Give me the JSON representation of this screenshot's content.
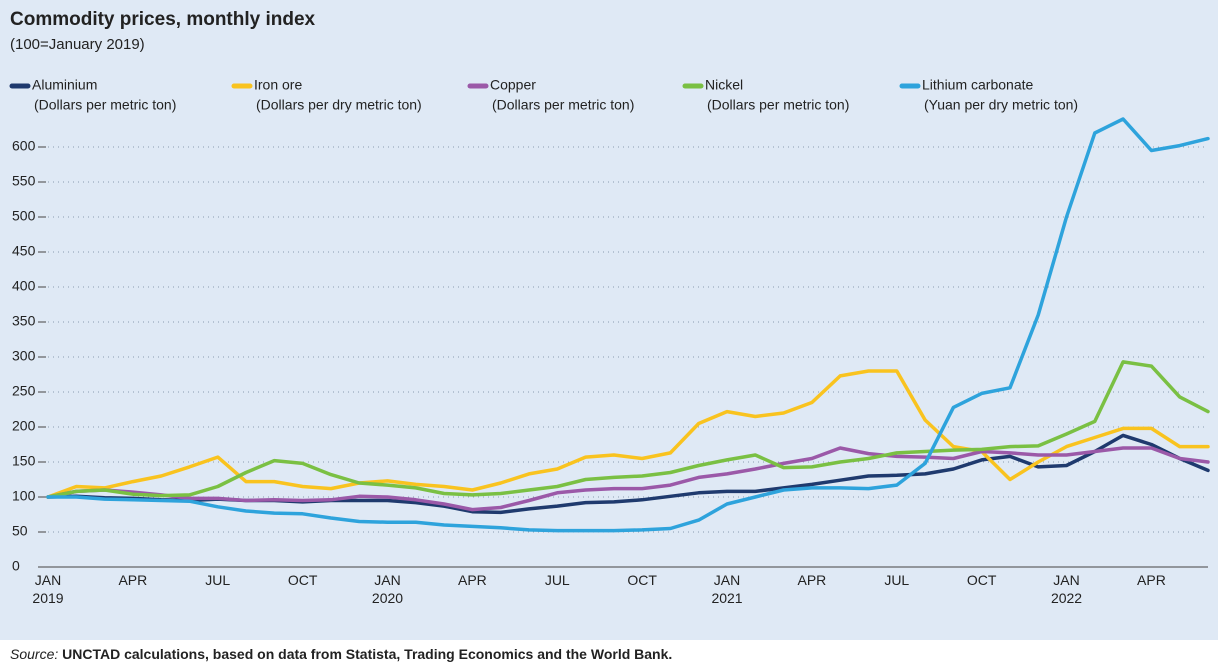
{
  "chart_data": {
    "type": "line",
    "title": "Commodity prices, monthly index",
    "subtitle": "(100=January 2019)",
    "source_label": "Source:",
    "source": "UNCTAD calculations, based on data from Statista, Trading Economics and the World Bank.",
    "categories": [
      "JAN\n2019",
      null,
      null,
      "APR",
      null,
      null,
      "JUL",
      null,
      null,
      "OCT",
      null,
      null,
      "JAN\n2020",
      null,
      null,
      "APR",
      null,
      null,
      "JUL",
      null,
      null,
      "OCT",
      null,
      null,
      "JAN\n2021",
      null,
      null,
      "APR",
      null,
      null,
      "JUL",
      null,
      null,
      "OCT",
      null,
      null,
      "JAN\n2022",
      null,
      null,
      "APR",
      null,
      null
    ],
    "series": [
      {
        "name": "Aluminium",
        "unit": "(Dollars per metric ton)",
        "color": "#1f3a6e",
        "values": [
          100,
          101,
          99,
          98,
          96,
          95,
          97,
          95,
          95,
          93,
          95,
          95,
          95,
          92,
          87,
          79,
          78,
          83,
          87,
          92,
          93,
          96,
          101,
          106,
          108,
          108,
          113,
          118,
          124,
          130,
          131,
          133,
          140,
          153,
          158,
          143,
          145,
          165,
          188,
          175,
          155,
          138
        ]
      },
      {
        "name": "Iron ore",
        "unit": "(Dollars per dry metric ton)",
        "color": "#f9c31f",
        "values": [
          100,
          115,
          113,
          122,
          130,
          143,
          157,
          122,
          122,
          115,
          112,
          120,
          123,
          118,
          115,
          110,
          120,
          133,
          140,
          157,
          160,
          155,
          163,
          205,
          222,
          215,
          220,
          235,
          273,
          280,
          280,
          210,
          172,
          165,
          125,
          150,
          172,
          185,
          198,
          198,
          172,
          172
        ]
      },
      {
        "name": "Copper",
        "unit": "(Dollars per metric ton)",
        "color": "#9b59a8",
        "values": [
          100,
          108,
          110,
          107,
          103,
          98,
          98,
          95,
          96,
          95,
          96,
          101,
          100,
          96,
          90,
          82,
          85,
          95,
          106,
          110,
          112,
          112,
          117,
          128,
          133,
          140,
          148,
          155,
          170,
          162,
          158,
          157,
          155,
          165,
          163,
          160,
          160,
          165,
          170,
          170,
          155,
          150
        ]
      },
      {
        "name": "Nickel",
        "unit": "(Dollars per metric ton)",
        "color": "#7ac043",
        "values": [
          100,
          108,
          110,
          104,
          102,
          103,
          115,
          135,
          152,
          148,
          132,
          120,
          117,
          113,
          105,
          103,
          105,
          110,
          115,
          125,
          128,
          130,
          135,
          145,
          153,
          160,
          142,
          143,
          150,
          155,
          163,
          165,
          167,
          168,
          172,
          173,
          190,
          208,
          293,
          287,
          243,
          222
        ]
      },
      {
        "name": "Lithium carbonate",
        "unit": "(Yuan per dry metric ton)",
        "color": "#2ea3dc",
        "values": [
          100,
          100,
          97,
          96,
          95,
          94,
          86,
          80,
          77,
          76,
          70,
          65,
          64,
          64,
          60,
          58,
          56,
          53,
          52,
          52,
          52,
          53,
          55,
          67,
          90,
          100,
          110,
          113,
          113,
          112,
          117,
          148,
          228,
          248,
          256,
          360,
          500,
          620,
          640,
          595,
          602,
          612
        ]
      }
    ],
    "ylim": [
      0,
      630
    ],
    "yticks": [
      0,
      50,
      100,
      150,
      200,
      250,
      300,
      350,
      400,
      450,
      500,
      550,
      600
    ],
    "grid": true
  }
}
